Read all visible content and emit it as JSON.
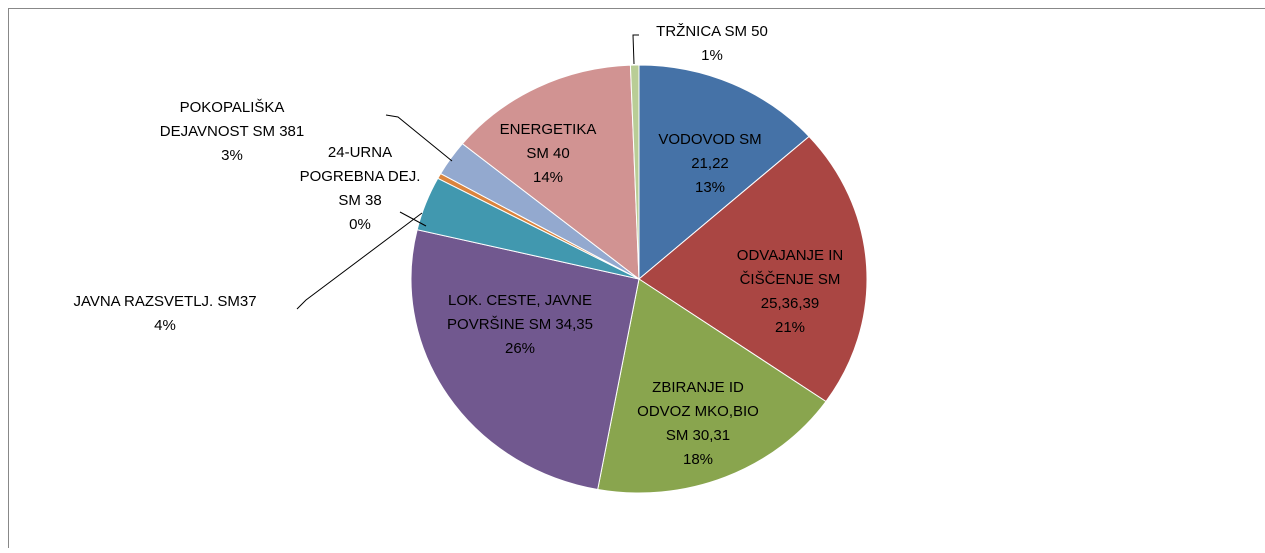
{
  "chart_data": {
    "type": "pie",
    "categories": [
      [
        "VODOVOD SM",
        "21,22"
      ],
      [
        "ODVAJANJE IN",
        "ČIŠČENJE SM",
        "25,36,39"
      ],
      [
        "ZBIRANJE ID",
        "ODVOZ MKO,BIO",
        "SM 30,31"
      ],
      [
        "LOK. CESTE, JAVNE",
        "POVRŠINE SM 34,35"
      ],
      [
        "JAVNA RAZSVETLJ. SM37"
      ],
      [
        "24-URNA",
        "POGREBNA DEJ.",
        "SM 38"
      ],
      [
        "POKOPALIŠKA",
        "DEJAVNOST SM 381"
      ],
      [
        "ENERGETIKA",
        "SM 40"
      ],
      [
        "TRŽNICA SM 50"
      ]
    ],
    "values": [
      13.4,
      21.3,
      18.2,
      25.8,
      4.1,
      0.4,
      2.7,
      13.5,
      0.6
    ],
    "value_labels": [
      "13%",
      "21%",
      "18%",
      "26%",
      "4%",
      "0%",
      "3%",
      "14%",
      "1%"
    ],
    "colors": [
      "#4572a7",
      "#aa4643",
      "#89a54e",
      "#71588f",
      "#4198af",
      "#db843d",
      "#93a9cf",
      "#d19392",
      "#b9cd96"
    ]
  }
}
